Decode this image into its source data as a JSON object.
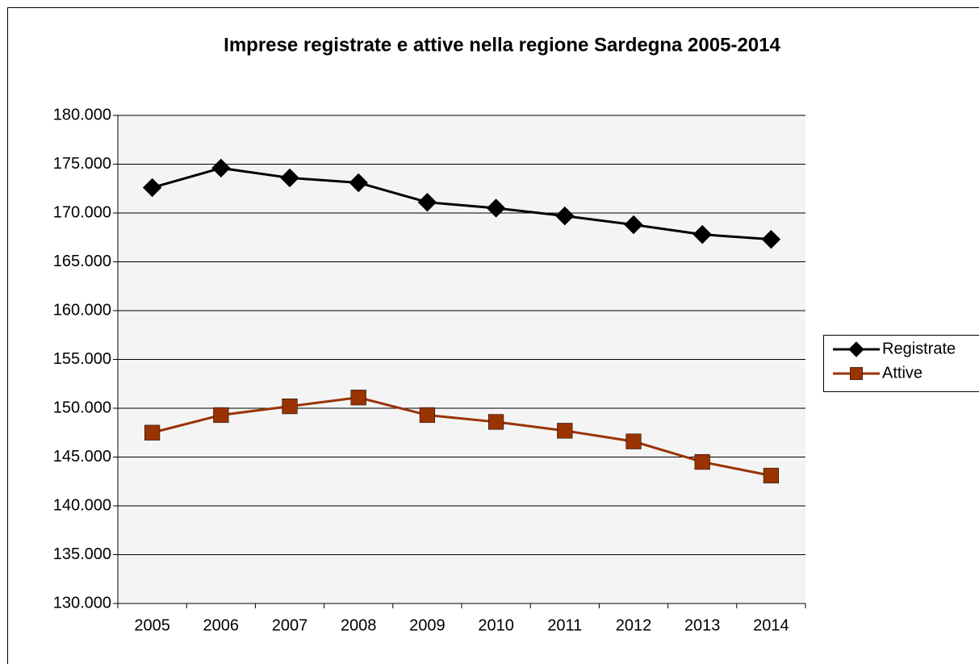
{
  "chart_data": {
    "type": "line",
    "title": "Imprese registrate e attive nella regione Sardegna 2005-2014",
    "categories": [
      "2005",
      "2006",
      "2007",
      "2008",
      "2009",
      "2010",
      "2011",
      "2012",
      "2013",
      "2014"
    ],
    "series": [
      {
        "name": "Registrate",
        "color": "#000000",
        "marker": "diamond",
        "values": [
          172600,
          174600,
          173600,
          173100,
          171100,
          170500,
          169700,
          168800,
          167800,
          167300
        ]
      },
      {
        "name": "Attive",
        "color": "#993300",
        "marker": "square",
        "values": [
          147500,
          149300,
          150200,
          151100,
          149300,
          148600,
          147700,
          146600,
          144500,
          143100
        ]
      }
    ],
    "ylim": [
      130000,
      180000
    ],
    "yticks": [
      {
        "value": 130000,
        "label": "130.000"
      },
      {
        "value": 135000,
        "label": "135.000"
      },
      {
        "value": 140000,
        "label": "140.000"
      },
      {
        "value": 145000,
        "label": "145.000"
      },
      {
        "value": 150000,
        "label": "150.000"
      },
      {
        "value": 155000,
        "label": "155.000"
      },
      {
        "value": 160000,
        "label": "160.000"
      },
      {
        "value": 165000,
        "label": "165.000"
      },
      {
        "value": 170000,
        "label": "170.000"
      },
      {
        "value": 175000,
        "label": "175.000"
      },
      {
        "value": 180000,
        "label": "180.000"
      }
    ],
    "grid": true,
    "legend": "right"
  }
}
